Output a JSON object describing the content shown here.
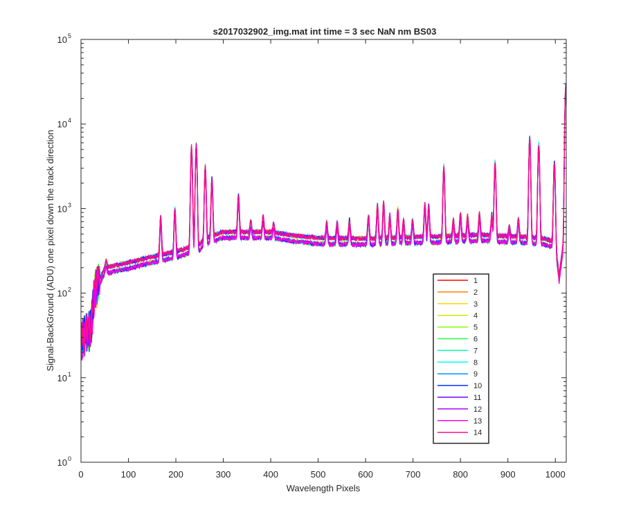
{
  "chart_data": {
    "type": "line",
    "title": "s2017032902_img.mat int time = 3 sec  NaN nm BS03",
    "xlabel": "Wavelength Pixels",
    "ylabel": "Signal-BackGround (ADU) one pixel down the track direction",
    "xlim": [
      0,
      1023
    ],
    "ylim": [
      1,
      100000
    ],
    "yscale": "log",
    "x_ticks": [
      0,
      100,
      200,
      300,
      400,
      500,
      600,
      700,
      800,
      900,
      1000
    ],
    "y_ticks": [
      {
        "value": 1,
        "base": "10",
        "exp": "0"
      },
      {
        "value": 10,
        "base": "10",
        "exp": "1"
      },
      {
        "value": 100,
        "base": "10",
        "exp": "2"
      },
      {
        "value": 1000,
        "base": "10",
        "exp": "3"
      },
      {
        "value": 10000,
        "base": "10",
        "exp": "4"
      },
      {
        "value": 100000,
        "base": "10",
        "exp": "5"
      }
    ],
    "grid": false,
    "legend_placement": "lower-right",
    "baseline": [
      [
        0,
        30
      ],
      [
        10,
        35
      ],
      [
        20,
        40
      ],
      [
        25,
        70
      ],
      [
        30,
        120
      ],
      [
        40,
        150
      ],
      [
        50,
        200
      ],
      [
        100,
        230
      ],
      [
        150,
        270
      ],
      [
        200,
        310
      ],
      [
        250,
        380
      ],
      [
        260,
        440
      ],
      [
        300,
        530
      ],
      [
        400,
        530
      ],
      [
        450,
        480
      ],
      [
        500,
        450
      ],
      [
        600,
        440
      ],
      [
        700,
        460
      ],
      [
        760,
        470
      ],
      [
        800,
        480
      ],
      [
        850,
        490
      ],
      [
        900,
        470
      ],
      [
        950,
        460
      ],
      [
        980,
        440
      ],
      [
        1000,
        400
      ],
      [
        1008,
        160
      ],
      [
        1015,
        330
      ],
      [
        1023,
        700
      ]
    ],
    "peaks": [
      [
        53,
        240
      ],
      [
        168,
        800
      ],
      [
        198,
        1000
      ],
      [
        233,
        5500
      ],
      [
        243,
        5800
      ],
      [
        262,
        3200
      ],
      [
        276,
        2300
      ],
      [
        332,
        1450
      ],
      [
        358,
        720
      ],
      [
        384,
        820
      ],
      [
        406,
        680
      ],
      [
        518,
        700
      ],
      [
        540,
        700
      ],
      [
        566,
        750
      ],
      [
        606,
        850
      ],
      [
        625,
        1100
      ],
      [
        638,
        1200
      ],
      [
        651,
        850
      ],
      [
        668,
        1000
      ],
      [
        680,
        750
      ],
      [
        699,
        750
      ],
      [
        725,
        1150
      ],
      [
        733,
        1100
      ],
      [
        765,
        3200
      ],
      [
        785,
        760
      ],
      [
        800,
        900
      ],
      [
        815,
        840
      ],
      [
        840,
        880
      ],
      [
        866,
        860
      ],
      [
        873,
        3600
      ],
      [
        903,
        620
      ],
      [
        922,
        780
      ],
      [
        946,
        7000
      ],
      [
        965,
        5800
      ],
      [
        998,
        3600
      ],
      [
        1022,
        29000
      ]
    ],
    "series": [
      {
        "name": "1",
        "color": "#ff0000"
      },
      {
        "name": "2",
        "color": "#ff7f00"
      },
      {
        "name": "3",
        "color": "#ffd700"
      },
      {
        "name": "4",
        "color": "#c8f000"
      },
      {
        "name": "5",
        "color": "#7fff00"
      },
      {
        "name": "6",
        "color": "#20ff40"
      },
      {
        "name": "7",
        "color": "#00ffa0"
      },
      {
        "name": "8",
        "color": "#00ffff"
      },
      {
        "name": "9",
        "color": "#0090ff"
      },
      {
        "name": "10",
        "color": "#0030ff"
      },
      {
        "name": "11",
        "color": "#7000ff"
      },
      {
        "name": "12",
        "color": "#b000ff"
      },
      {
        "name": "13",
        "color": "#ff00e0"
      },
      {
        "name": "14",
        "color": "#ff1080"
      }
    ]
  }
}
